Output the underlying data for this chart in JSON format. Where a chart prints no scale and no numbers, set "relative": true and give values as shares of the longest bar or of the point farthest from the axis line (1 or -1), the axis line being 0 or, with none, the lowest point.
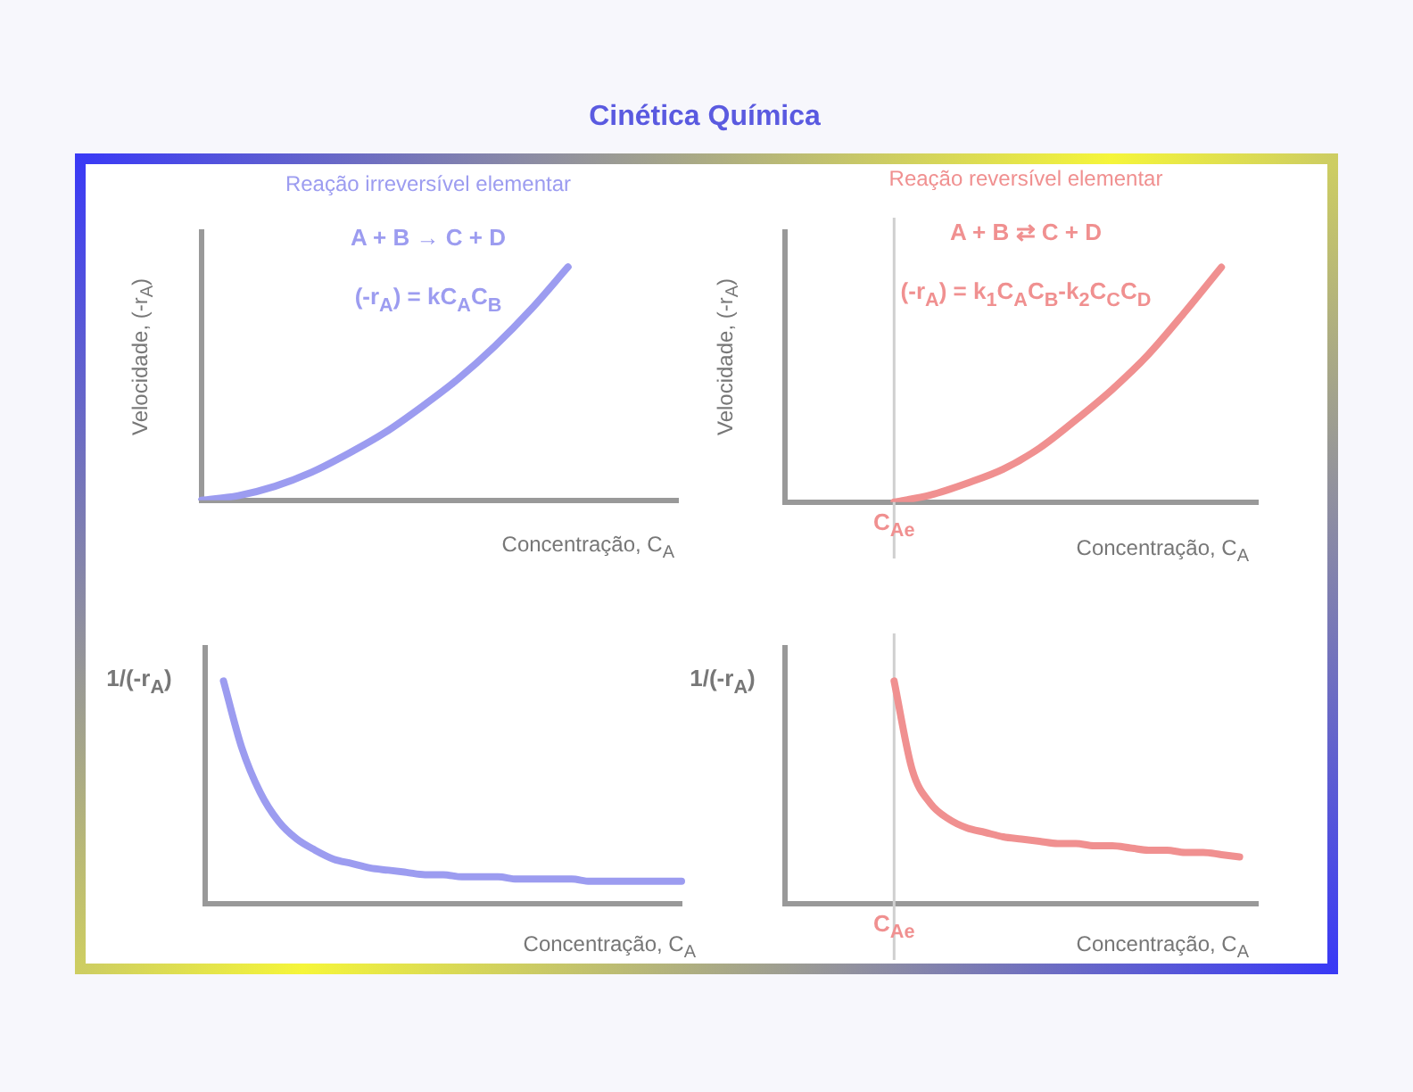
{
  "chart_data": [
    {
      "type": "other",
      "title": "Cinética Química"
    },
    {
      "type": "line",
      "title": "Reação irreversível elementar",
      "xlabel": "Concentração, C$_{A}$",
      "ylabel": "Velocidade, (-r$_{A}$)",
      "relative": true,
      "annotations": [
        "A + B → C + D",
        "(-r$_{A}$) = kC$_{A}$C$_{B}$"
      ],
      "categories": [
        null,
        null,
        null,
        null,
        null,
        null,
        null,
        null,
        null,
        null,
        null,
        null,
        null,
        null
      ],
      "series": [
        {
          "color": "#9c9cf0",
          "values": [
            0,
            0.02,
            0.06,
            0.12,
            0.2,
            0.29,
            0.4,
            0.52,
            0.66,
            0.82,
            1,
            null,
            null,
            null
          ]
        }
      ]
    },
    {
      "type": "line",
      "title": "Reação reversível elementar",
      "xlabel": "Concentração, C$_{A}$",
      "ylabel": "Velocidade, (-r$_{A}$)",
      "relative": true,
      "annotations": [
        "A + B ⇄ C + D",
        "(-r$_{A}$) = k$_{1}$C$_{A}$C$_{B}$-k$_{2}$C$_{C}$C$_{D}$"
      ],
      "categories": [
        null,
        null,
        null,
        null,
        null,
        null,
        null,
        null,
        null,
        null,
        null,
        null,
        null,
        null
      ],
      "ref_lines": [
        {
          "axis": "x",
          "label": "C$_{Ae}$",
          "color": "#d0d0d0"
        }
      ],
      "series": [
        {
          "color": "#f09090",
          "values": [
            null,
            null,
            null,
            0,
            0.03,
            0.08,
            0.14,
            0.23,
            0.35,
            0.48,
            0.63,
            0.81,
            1,
            null
          ]
        }
      ]
    },
    {
      "type": "line",
      "xlabel": "Concentração, C$_{A}$",
      "ylabel": "1/(-r$_{A}$)",
      "relative": true,
      "categories": [
        null,
        null,
        null,
        null,
        null,
        null,
        null,
        null,
        null,
        null,
        null,
        null,
        null,
        null,
        null,
        null,
        null,
        null,
        null,
        null,
        null,
        null,
        null,
        null,
        null,
        null,
        null
      ],
      "series": [
        {
          "color": "#9c9cf0",
          "values": [
            null,
            1,
            0.7,
            0.5,
            0.37,
            0.29,
            0.24,
            0.2,
            0.18,
            0.16,
            0.15,
            0.14,
            0.13,
            0.13,
            0.12,
            0.12,
            0.12,
            0.11,
            0.11,
            0.11,
            0.11,
            0.1,
            0.1,
            0.1,
            0.1,
            0.1,
            0.1
          ]
        }
      ]
    },
    {
      "type": "line",
      "xlabel": "Concentração, C$_{A}$",
      "ylabel": "1/(-r$_{A}$)",
      "relative": true,
      "categories": [
        null,
        null,
        null,
        null,
        null,
        null,
        null,
        null,
        null,
        null,
        null,
        null,
        null,
        null,
        null,
        null,
        null,
        null,
        null,
        null,
        null,
        null,
        null,
        null,
        null,
        null,
        null
      ],
      "ref_lines": [
        {
          "axis": "x",
          "label": "C$_{Ae}$",
          "color": "#d0d0d0"
        }
      ],
      "series": [
        {
          "color": "#f09090",
          "values": [
            null,
            null,
            null,
            null,
            null,
            null,
            1,
            0.6,
            0.45,
            0.38,
            0.34,
            0.32,
            0.3,
            0.29,
            0.28,
            0.27,
            0.27,
            0.26,
            0.26,
            0.25,
            0.24,
            0.24,
            0.23,
            0.23,
            0.22,
            0.21,
            null
          ]
        }
      ]
    }
  ]
}
